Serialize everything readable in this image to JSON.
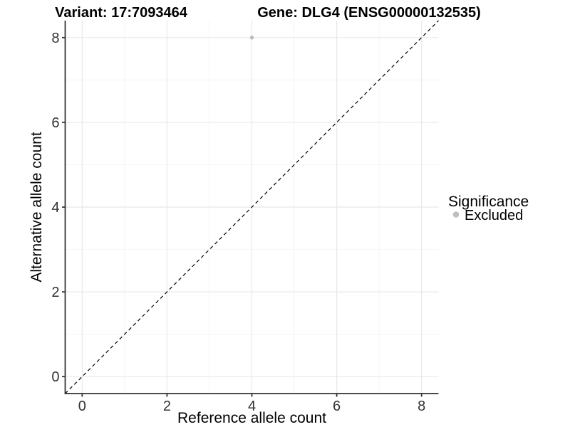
{
  "titles": {
    "variant": "Variant: 17:7093464",
    "gene": "Gene: DLG4 (ENSG00000132535)"
  },
  "legend": {
    "title": "Significance",
    "items": [
      {
        "label": "Excluded",
        "color": "#bebebe"
      }
    ]
  },
  "chart_data": {
    "type": "scatter",
    "title": "Variant: 17:7093464 — Gene: DLG4 (ENSG00000132535)",
    "xlabel": "Reference allele count",
    "ylabel": "Alternative allele count",
    "xlim": [
      -0.4,
      8.4
    ],
    "ylim": [
      -0.4,
      8.4
    ],
    "x_ticks": [
      0,
      2,
      4,
      6,
      8
    ],
    "y_ticks": [
      0,
      2,
      4,
      6,
      8
    ],
    "x_minor_ticks": [
      1,
      3,
      5,
      7
    ],
    "y_minor_ticks": [
      1,
      3,
      5,
      7
    ],
    "grid": "major+minor",
    "legend_position": "right",
    "series": [
      {
        "name": "Excluded",
        "color": "#bebebe",
        "points": [
          {
            "x": 4,
            "y": 8
          }
        ]
      }
    ],
    "reference_line": {
      "slope": 1,
      "intercept": 0,
      "style": "dashed",
      "color": "#111111"
    }
  },
  "style": {
    "background": "#ffffff",
    "point_color": "#bebebe",
    "grid_major_color": "#e8e8e8",
    "grid_minor_color": "#f4f4f4",
    "axis_color": "#333333",
    "tick_label_color": "#333333",
    "text_color": "#000000"
  }
}
